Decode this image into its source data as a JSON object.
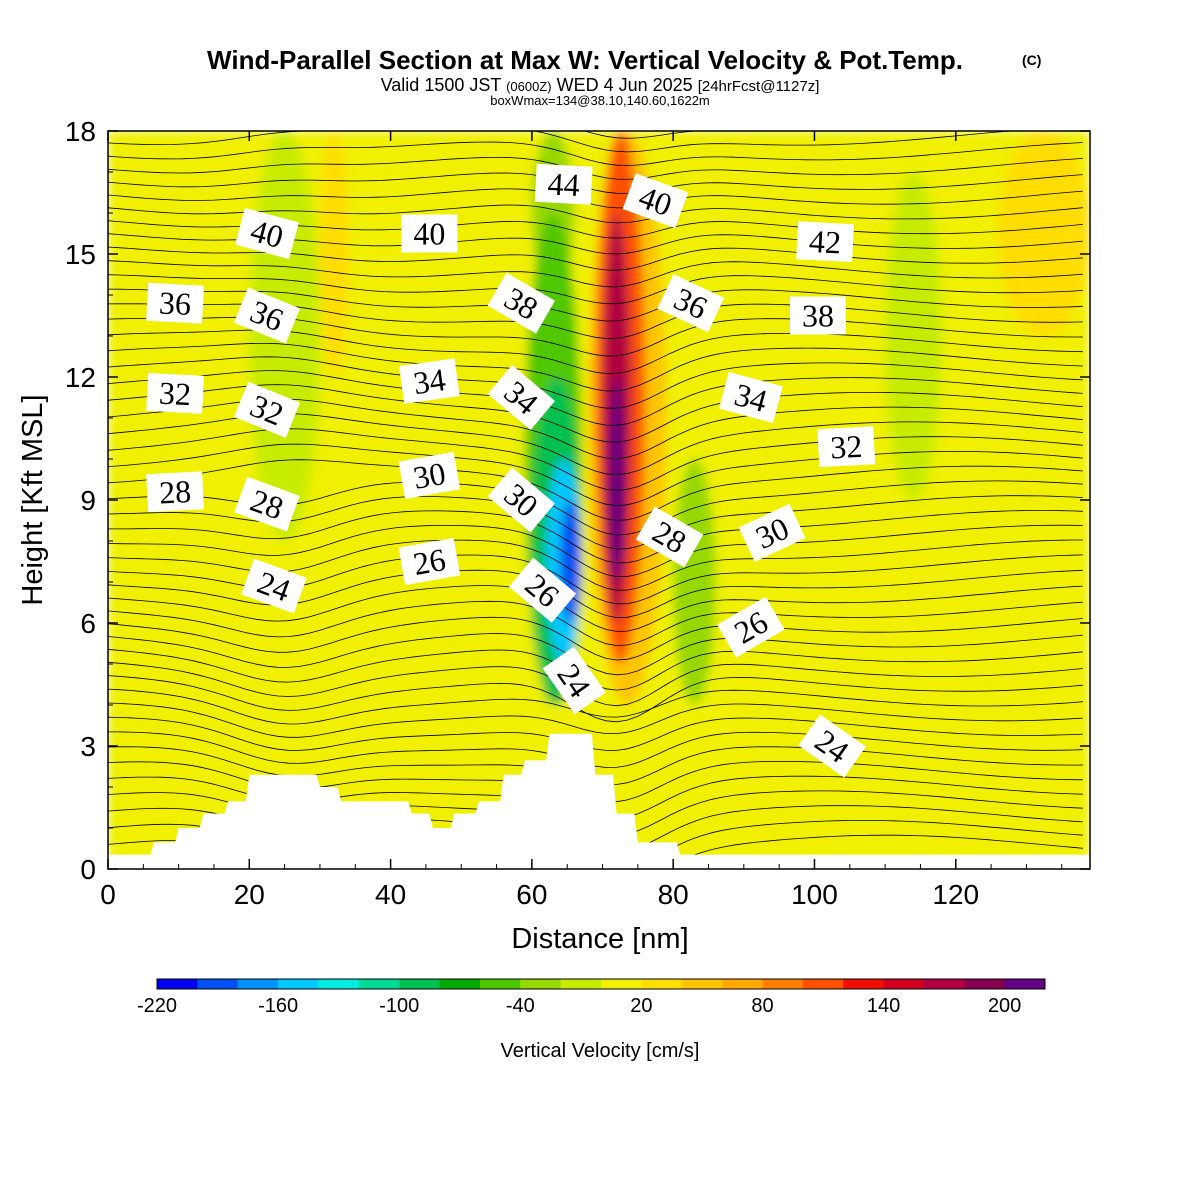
{
  "chart_data": {
    "type": "heatmap",
    "title": "Wind-Parallel Section at Max W: Vertical Velocity & Pot.Temp.",
    "title_mark": "(C)",
    "subtitle_main": "Valid 1500 JST",
    "subtitle_z": "(0600Z)",
    "subtitle_date": "WED 4 Jun 2025",
    "subtitle_fcst": "[24hrFcst@1127z]",
    "subtitle2": "boxWmax=134@38.10,140.60,1622m",
    "xlabel": "Distance [nm]",
    "ylabel": "Height [Kft MSL]",
    "xlim": [
      0,
      139
    ],
    "ylim": [
      0,
      18
    ],
    "x_ticks": [
      0,
      20,
      40,
      60,
      80,
      100,
      120
    ],
    "y_ticks": [
      0,
      3,
      6,
      9,
      12,
      15,
      18
    ],
    "grid": false,
    "colorbar": {
      "label": "Vertical Velocity [cm/s]",
      "levels": [
        -220,
        -200,
        -180,
        -160,
        -140,
        -120,
        -100,
        -80,
        -60,
        -40,
        -20,
        0,
        20,
        40,
        60,
        80,
        100,
        120,
        140,
        160,
        180,
        200,
        220
      ],
      "tick_labels": [
        "-220",
        "-160",
        "-100",
        "-40",
        "20",
        "80",
        "140",
        "200"
      ],
      "tick_values": [
        -220,
        -160,
        -100,
        -40,
        20,
        80,
        140,
        200
      ],
      "colors": [
        "#0000ee",
        "#0050f5",
        "#0090f8",
        "#00c8ff",
        "#00eee0",
        "#00d896",
        "#00c050",
        "#00aa00",
        "#50c800",
        "#96d800",
        "#c8ec00",
        "#f0f000",
        "#ffdd00",
        "#ffc400",
        "#ffa800",
        "#ff8000",
        "#ff5000",
        "#f01000",
        "#d00020",
        "#b00040",
        "#860050",
        "#600080"
      ]
    },
    "shading_regions": [
      {
        "value": 10,
        "x": [
          0,
          139
        ],
        "y": [
          0,
          18
        ]
      },
      {
        "value": -10,
        "x": [
          20,
          30
        ],
        "y": [
          8,
          18
        ]
      },
      {
        "value": -10,
        "x": [
          110,
          118
        ],
        "y": [
          9,
          17
        ]
      },
      {
        "value": -30,
        "x": [
          60,
          66
        ],
        "y": [
          14,
          18
        ]
      },
      {
        "value": -60,
        "x": [
          59,
          67
        ],
        "y": [
          4,
          16
        ]
      },
      {
        "value": -100,
        "x": [
          60,
          67
        ],
        "y": [
          4,
          12
        ]
      },
      {
        "value": -160,
        "x": [
          62,
          67
        ],
        "y": [
          5,
          10
        ]
      },
      {
        "value": -200,
        "x": [
          64,
          67
        ],
        "y": [
          6,
          9
        ]
      },
      {
        "value": 40,
        "x": [
          68,
          79
        ],
        "y": [
          4,
          18
        ]
      },
      {
        "value": 100,
        "x": [
          69,
          76
        ],
        "y": [
          5,
          18
        ]
      },
      {
        "value": 160,
        "x": [
          70,
          74
        ],
        "y": [
          6,
          16
        ]
      },
      {
        "value": 200,
        "x": [
          71,
          73
        ],
        "y": [
          7,
          12
        ]
      },
      {
        "value": -30,
        "x": [
          80,
          86
        ],
        "y": [
          4,
          10
        ]
      },
      {
        "value": 30,
        "x": [
          30,
          34
        ],
        "y": [
          12,
          18
        ]
      },
      {
        "value": 30,
        "x": [
          126,
          139
        ],
        "y": [
          13,
          18
        ]
      }
    ],
    "terrain_top": [
      {
        "x": 0,
        "h": 0.35
      },
      {
        "x": 6,
        "h": 0.35
      },
      {
        "x": 6.5,
        "h": 0.65
      },
      {
        "x": 9.5,
        "h": 0.65
      },
      {
        "x": 10,
        "h": 1.0
      },
      {
        "x": 13,
        "h": 1.0
      },
      {
        "x": 13.5,
        "h": 1.35
      },
      {
        "x": 16.5,
        "h": 1.35
      },
      {
        "x": 17,
        "h": 1.65
      },
      {
        "x": 19.5,
        "h": 1.65
      },
      {
        "x": 20,
        "h": 2.3
      },
      {
        "x": 29.5,
        "h": 2.3
      },
      {
        "x": 30,
        "h": 2.0
      },
      {
        "x": 32.5,
        "h": 2.0
      },
      {
        "x": 33,
        "h": 1.65
      },
      {
        "x": 42.5,
        "h": 1.65
      },
      {
        "x": 43,
        "h": 1.35
      },
      {
        "x": 45.5,
        "h": 1.35
      },
      {
        "x": 46,
        "h": 1.0
      },
      {
        "x": 48.5,
        "h": 1.0
      },
      {
        "x": 49,
        "h": 1.35
      },
      {
        "x": 52,
        "h": 1.35
      },
      {
        "x": 52.5,
        "h": 1.65
      },
      {
        "x": 55.5,
        "h": 1.65
      },
      {
        "x": 56,
        "h": 2.3
      },
      {
        "x": 58.5,
        "h": 2.3
      },
      {
        "x": 59,
        "h": 2.65
      },
      {
        "x": 62,
        "h": 2.65
      },
      {
        "x": 62.5,
        "h": 3.3
      },
      {
        "x": 64.5,
        "h": 3.3
      },
      {
        "x": 65,
        "h": 3.3
      },
      {
        "x": 68.5,
        "h": 3.3
      },
      {
        "x": 69,
        "h": 2.3
      },
      {
        "x": 71.5,
        "h": 2.3
      },
      {
        "x": 72,
        "h": 1.35
      },
      {
        "x": 74.5,
        "h": 1.35
      },
      {
        "x": 75,
        "h": 0.65
      },
      {
        "x": 80.5,
        "h": 0.65
      },
      {
        "x": 81,
        "h": 0.35
      },
      {
        "x": 139,
        "h": 0.35
      }
    ],
    "theta_labels": [
      {
        "value": 40,
        "text": "40",
        "x": 22.5,
        "y": 15.5,
        "angle": 15
      },
      {
        "value": 40,
        "text": "40",
        "x": 45.5,
        "y": 15.5,
        "angle": 0
      },
      {
        "value": 44,
        "text": "44",
        "x": 64.5,
        "y": 16.7,
        "angle": 3
      },
      {
        "value": 40,
        "text": "40",
        "x": 77.5,
        "y": 16.3,
        "angle": 20
      },
      {
        "value": 42,
        "text": "42",
        "x": 101.5,
        "y": 15.3,
        "angle": 3
      },
      {
        "value": 36,
        "text": "36",
        "x": 9.5,
        "y": 13.8,
        "angle": 3
      },
      {
        "value": 36,
        "text": "36",
        "x": 22.5,
        "y": 13.5,
        "angle": 22
      },
      {
        "value": 38,
        "text": "38",
        "x": 58.5,
        "y": 13.8,
        "angle": 30
      },
      {
        "value": 36,
        "text": "36",
        "x": 82.5,
        "y": 13.8,
        "angle": 25
      },
      {
        "value": 38,
        "text": "38",
        "x": 100.5,
        "y": 13.5,
        "angle": 0
      },
      {
        "value": 32,
        "text": "32",
        "x": 9.5,
        "y": 11.6,
        "angle": 3
      },
      {
        "value": 32,
        "text": "32",
        "x": 22.5,
        "y": 11.2,
        "angle": 22
      },
      {
        "value": 34,
        "text": "34",
        "x": 45.5,
        "y": 11.9,
        "angle": -8
      },
      {
        "value": 34,
        "text": "34",
        "x": 58.5,
        "y": 11.5,
        "angle": 40
      },
      {
        "value": 34,
        "text": "34",
        "x": 91.0,
        "y": 11.5,
        "angle": 15
      },
      {
        "value": 32,
        "text": "32",
        "x": 104.5,
        "y": 10.3,
        "angle": -3
      },
      {
        "value": 28,
        "text": "28",
        "x": 9.5,
        "y": 9.2,
        "angle": -3
      },
      {
        "value": 28,
        "text": "28",
        "x": 22.5,
        "y": 8.9,
        "angle": 20
      },
      {
        "value": 30,
        "text": "30",
        "x": 45.5,
        "y": 9.6,
        "angle": -10
      },
      {
        "value": 30,
        "text": "30",
        "x": 58.5,
        "y": 9.0,
        "angle": 40
      },
      {
        "value": 28,
        "text": "28",
        "x": 79.5,
        "y": 8.1,
        "angle": 30
      },
      {
        "value": 30,
        "text": "30",
        "x": 94.0,
        "y": 8.2,
        "angle": -25
      },
      {
        "value": 24,
        "text": "24",
        "x": 23.5,
        "y": 6.9,
        "angle": 20
      },
      {
        "value": 26,
        "text": "26",
        "x": 45.5,
        "y": 7.5,
        "angle": -10
      },
      {
        "value": 26,
        "text": "26",
        "x": 61.5,
        "y": 6.8,
        "angle": 40
      },
      {
        "value": 26,
        "text": "26",
        "x": 91.0,
        "y": 5.9,
        "angle": -30
      },
      {
        "value": 24,
        "text": "24",
        "x": 66.0,
        "y": 4.6,
        "angle": 55
      },
      {
        "value": 24,
        "text": "24",
        "x": 102.5,
        "y": 3.0,
        "angle": 35
      }
    ]
  }
}
